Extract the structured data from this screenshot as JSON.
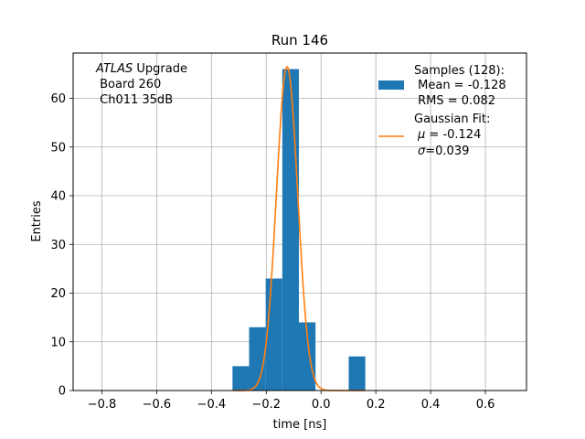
{
  "chart_data": {
    "type": "bar",
    "title": "Run 146",
    "xlabel": "time [ns]",
    "ylabel": "Entries",
    "xlim": [
      -0.905,
      0.75
    ],
    "ylim": [
      0,
      69.3
    ],
    "xticks": [
      -0.8,
      -0.6,
      -0.4,
      -0.2,
      0.0,
      0.2,
      0.4,
      0.6
    ],
    "xtick_labels": [
      "−0.8",
      "−0.6",
      "−0.4",
      "−0.2",
      "0.0",
      "0.2",
      "0.4",
      "0.6"
    ],
    "yticks": [
      0,
      10,
      20,
      30,
      40,
      50,
      60
    ],
    "ytick_labels": [
      "0",
      "10",
      "20",
      "30",
      "40",
      "50",
      "60"
    ],
    "grid": true,
    "bar_color": "#1f77b4",
    "fit_color": "#ff7f0e",
    "histogram": {
      "bin_edges": [
        -0.3232,
        -0.2626,
        -0.202,
        -0.1414,
        -0.0808,
        -0.0202,
        0.0404,
        0.101,
        0.1616
      ],
      "counts": [
        5,
        13,
        23,
        66,
        14,
        0,
        0,
        7
      ]
    },
    "gaussian_fit": {
      "mu": -0.124,
      "sigma": 0.039,
      "amplitude": 66.5,
      "x_range": [
        -0.3232,
        0.1616
      ]
    },
    "annotation": {
      "line1_italic": "ATLAS",
      "line1_rest": " Upgrade",
      "line2": " Board 260",
      "line3": " Ch011 35dB"
    },
    "legend": {
      "location": "upper right",
      "samples": {
        "line1": "Samples (128):",
        "line2": " Mean = -0.128",
        "line3": " RMS = 0.082"
      },
      "fit": {
        "line1": "Gaussian Fit:",
        "line2_sym": "μ",
        "line2_rest": " = -0.124",
        "line3_sym": "σ",
        "line3_rest": "=0.039"
      }
    }
  }
}
